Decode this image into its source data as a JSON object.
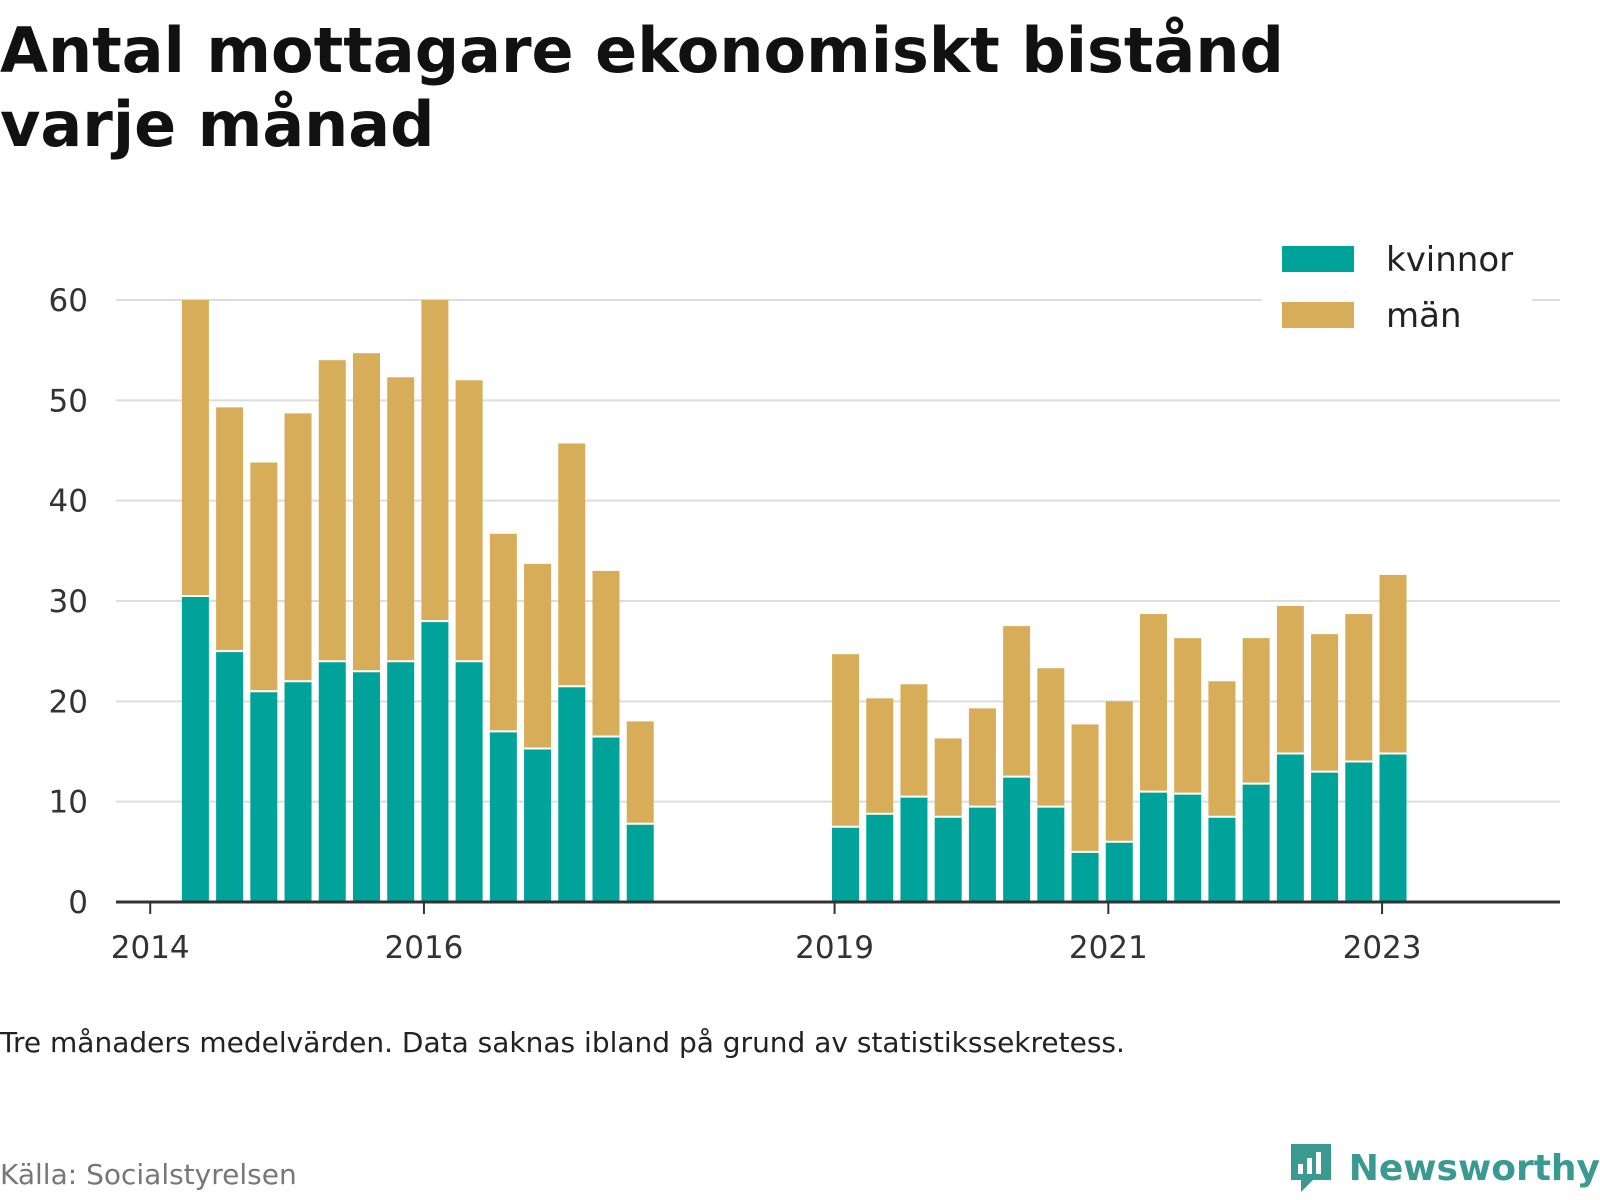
{
  "title": "Antal mottagare ekonomiskt bistånd varje månad",
  "note": "Tre månaders medelvärden. Data saknas ibland på grund av statistikssekretess.",
  "source": "Källa: Socialstyrelsen",
  "brand": "Newsworthy",
  "colors": {
    "kvinnor": "#00a399",
    "man": "#d8ad5a",
    "grid": "#dddddd",
    "axis": "#333333",
    "brand": "#3a9a92"
  },
  "chart_data": {
    "type": "bar",
    "stacked": true,
    "x_axis": {
      "type": "time",
      "min": 2013.75,
      "max": 2024.3,
      "ticks": [
        {
          "value": 2014.0,
          "label": "2014"
        },
        {
          "value": 2016.0,
          "label": "2016"
        },
        {
          "value": 2019.0,
          "label": "2019"
        },
        {
          "value": 2021.0,
          "label": "2021"
        },
        {
          "value": 2023.0,
          "label": "2023"
        }
      ]
    },
    "y_axis": {
      "min": 0,
      "max": 60,
      "ticks": [
        0,
        10,
        20,
        30,
        40,
        50,
        60
      ],
      "grid": true
    },
    "legend": {
      "position": "top-right",
      "items": [
        "kvinnor",
        "män"
      ]
    },
    "series": [
      {
        "name": "kvinnor",
        "color": "#00a399",
        "points": [
          {
            "x": 2014.33,
            "y": 30.5
          },
          {
            "x": 2014.58,
            "y": 25.0
          },
          {
            "x": 2014.83,
            "y": 21.0
          },
          {
            "x": 2015.08,
            "y": 22.0
          },
          {
            "x": 2015.33,
            "y": 24.0
          },
          {
            "x": 2015.58,
            "y": 23.0
          },
          {
            "x": 2015.83,
            "y": 24.0
          },
          {
            "x": 2016.08,
            "y": 28.0
          },
          {
            "x": 2016.33,
            "y": 24.0
          },
          {
            "x": 2016.58,
            "y": 17.0
          },
          {
            "x": 2016.83,
            "y": 15.3
          },
          {
            "x": 2017.08,
            "y": 21.5
          },
          {
            "x": 2017.33,
            "y": 16.5
          },
          {
            "x": 2017.58,
            "y": 7.8
          },
          {
            "x": 2019.08,
            "y": 7.5
          },
          {
            "x": 2019.33,
            "y": 8.8
          },
          {
            "x": 2019.58,
            "y": 10.5
          },
          {
            "x": 2019.83,
            "y": 8.5
          },
          {
            "x": 2020.08,
            "y": 9.5
          },
          {
            "x": 2020.33,
            "y": 12.5
          },
          {
            "x": 2020.58,
            "y": 9.5
          },
          {
            "x": 2020.83,
            "y": 5.0
          },
          {
            "x": 2021.08,
            "y": 6.0
          },
          {
            "x": 2021.33,
            "y": 11.0
          },
          {
            "x": 2021.58,
            "y": 10.8
          },
          {
            "x": 2021.83,
            "y": 8.5
          },
          {
            "x": 2022.08,
            "y": 11.8
          },
          {
            "x": 2022.33,
            "y": 14.8
          },
          {
            "x": 2022.58,
            "y": 13.0
          },
          {
            "x": 2022.83,
            "y": 14.0
          },
          {
            "x": 2023.08,
            "y": 14.8
          }
        ]
      },
      {
        "name": "män",
        "color": "#d8ad5a",
        "points": [
          {
            "x": 2014.33,
            "y": 29.5
          },
          {
            "x": 2014.58,
            "y": 24.3
          },
          {
            "x": 2014.83,
            "y": 22.8
          },
          {
            "x": 2015.08,
            "y": 26.7
          },
          {
            "x": 2015.33,
            "y": 30.0
          },
          {
            "x": 2015.58,
            "y": 31.7
          },
          {
            "x": 2015.83,
            "y": 28.3
          },
          {
            "x": 2016.08,
            "y": 32.0
          },
          {
            "x": 2016.33,
            "y": 28.0
          },
          {
            "x": 2016.58,
            "y": 19.7
          },
          {
            "x": 2016.83,
            "y": 18.4
          },
          {
            "x": 2017.08,
            "y": 24.2
          },
          {
            "x": 2017.33,
            "y": 16.5
          },
          {
            "x": 2017.58,
            "y": 10.2
          },
          {
            "x": 2019.08,
            "y": 17.2
          },
          {
            "x": 2019.33,
            "y": 11.5
          },
          {
            "x": 2019.58,
            "y": 11.2
          },
          {
            "x": 2019.83,
            "y": 7.8
          },
          {
            "x": 2020.08,
            "y": 9.8
          },
          {
            "x": 2020.33,
            "y": 15.0
          },
          {
            "x": 2020.58,
            "y": 13.8
          },
          {
            "x": 2020.83,
            "y": 12.7
          },
          {
            "x": 2021.08,
            "y": 14.0
          },
          {
            "x": 2021.33,
            "y": 17.7
          },
          {
            "x": 2021.58,
            "y": 15.5
          },
          {
            "x": 2021.83,
            "y": 13.5
          },
          {
            "x": 2022.08,
            "y": 14.5
          },
          {
            "x": 2022.33,
            "y": 14.7
          },
          {
            "x": 2022.58,
            "y": 13.7
          },
          {
            "x": 2022.83,
            "y": 14.7
          },
          {
            "x": 2023.08,
            "y": 17.8
          }
        ]
      }
    ]
  }
}
